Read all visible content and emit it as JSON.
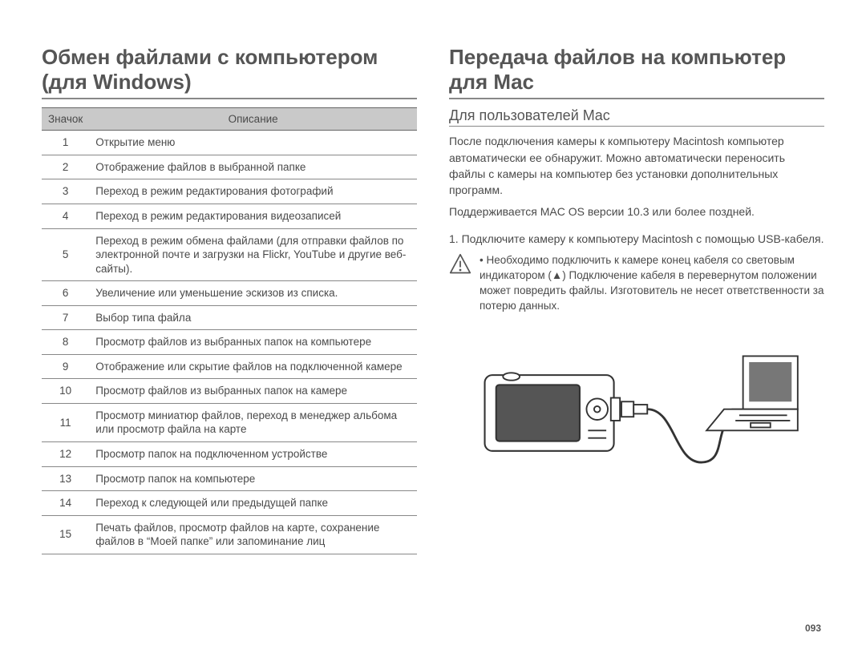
{
  "page_number": "093",
  "left": {
    "heading": "Обмен файлами с компьютером (для Windows)",
    "table_header": {
      "icon": "Значок",
      "desc": "Описание"
    },
    "rows": [
      {
        "idx": "1",
        "desc": "Открытие меню"
      },
      {
        "idx": "2",
        "desc": "Отображение файлов в выбранной папке"
      },
      {
        "idx": "3",
        "desc": "Переход в режим редактирования фотографий"
      },
      {
        "idx": "4",
        "desc": "Переход в режим редактирования видеозаписей"
      },
      {
        "idx": "5",
        "desc": "Переход в режим обмена файлами (для отправки файлов по электронной почте и загрузки на Flickr, YouTube и другие веб-сайты)."
      },
      {
        "idx": "6",
        "desc": "Увеличение или уменьшение эскизов из списка."
      },
      {
        "idx": "7",
        "desc": "Выбор типа файла"
      },
      {
        "idx": "8",
        "desc": "Просмотр файлов из выбранных папок на компьютере"
      },
      {
        "idx": "9",
        "desc": "Отображение или скрытие файлов на подключенной камере"
      },
      {
        "idx": "10",
        "desc": "Просмотр файлов из выбранных папок на камере"
      },
      {
        "idx": "11",
        "desc": "Просмотр миниатюр файлов, переход в менеджер альбома или просмотр файла на карте"
      },
      {
        "idx": "12",
        "desc": "Просмотр папок на подключенном устройстве"
      },
      {
        "idx": "13",
        "desc": "Просмотр папок на компьютере"
      },
      {
        "idx": "14",
        "desc": "Переход к следующей или предыдущей папке"
      },
      {
        "idx": "15",
        "desc": "Печать файлов, просмотр файлов на карте, сохранение файлов в “Моей папке” или запоминание лиц"
      }
    ]
  },
  "right": {
    "heading": "Передача файлов на компьютер для Mac",
    "subheading": "Для пользователей Mac",
    "para1": "После подключения камеры к компьютеру Macintosh компьютер автоматически ее обнаружит. Можно автоматически переносить файлы с камеры на компьютер без установки дополнительных программ.",
    "para2": "Поддерживается MAC OS версии 10.3 или более поздней.",
    "step_num": "1.",
    "step_text": "Подключите камеру к компьютеру Macintosh с помощью USB-кабеля.",
    "warning_bullet": "•",
    "warning": "Необходимо подключить к камере конец кабеля со световым индикатором (▲) Подключение кабеля в перевернутом положении может повредить файлы. Изготовитель не несет ответственности за потерю данных."
  }
}
